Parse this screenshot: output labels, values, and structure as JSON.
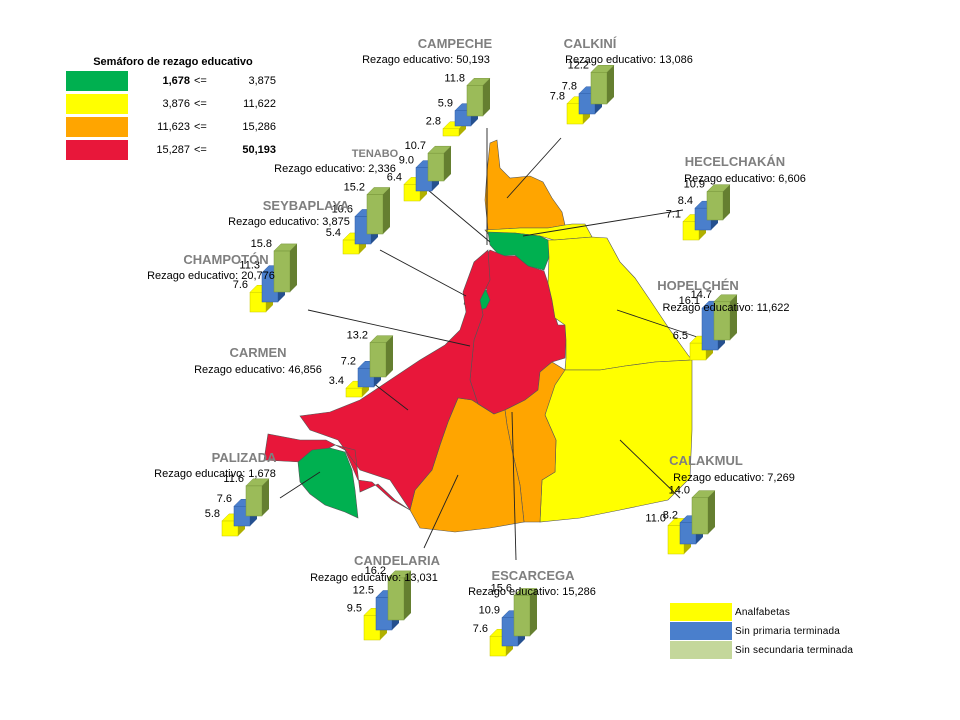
{
  "legend": {
    "title": "Semáforo de rezago educativo",
    "rows": [
      {
        "from": "1,678",
        "op": "<=",
        "to": "3,875",
        "color": "#00b050"
      },
      {
        "from": "3,876",
        "op": "<=",
        "to": "11,622",
        "color": "#ffff00"
      },
      {
        "from": "11,623",
        "op": "<=",
        "to": "15,286",
        "color": "#ffa500"
      },
      {
        "from": "15,287",
        "op": "<=",
        "to": "50,193",
        "color": "#e8173a"
      }
    ]
  },
  "series_legend": [
    {
      "label": "Analfabetas",
      "color": "#ffff00"
    },
    {
      "label": "Sin primaria terminada",
      "color": "#4a7fcc"
    },
    {
      "label": "Sin secundaria terminada",
      "color": "#c4d79b"
    }
  ],
  "map_colors": {
    "red": "#e8173a",
    "orange": "#ffa500",
    "yellow": "#ffff00",
    "green": "#00b050",
    "bar_yellow": "#ffff00",
    "bar_blue": "#4a7fcc",
    "bar_green": "#9bbb59"
  },
  "municipalities": [
    {
      "name": "CAMPECHE",
      "rezago_label": "Rezago educativo:",
      "rezago": "50,193",
      "values": [
        2.8,
        5.9,
        11.8
      ],
      "labels": [
        "2.8",
        "5.9",
        "11.8"
      ],
      "region_color": "red"
    },
    {
      "name": "CALKINÍ",
      "rezago_label": "Rezago educativo:",
      "rezago": "13,086",
      "values": [
        7.8,
        7.8,
        12.2
      ],
      "labels": [
        "7.8",
        "7.8",
        "12.2"
      ],
      "region_color": "orange"
    },
    {
      "name": "TENABO",
      "rezago_label": "Rezago educativo:",
      "rezago": "2,336",
      "values": [
        6.4,
        9.0,
        10.7
      ],
      "labels": [
        "6.4",
        "9.0",
        "10.7"
      ],
      "region_color": "green"
    },
    {
      "name": "HECELCHAKÁN",
      "rezago_label": "Rezago educativo:",
      "rezago": "6,606",
      "values": [
        7.1,
        8.4,
        10.9
      ],
      "labels": [
        "7.1",
        "8.4",
        "10.9"
      ],
      "region_color": "yellow"
    },
    {
      "name": "SEYBAPLAYA",
      "rezago_label": "Rezago educativo:",
      "rezago": "3,875",
      "values": [
        5.4,
        10.6,
        15.2
      ],
      "labels": [
        "5.4",
        "10.6",
        "15.2"
      ],
      "region_color": "green"
    },
    {
      "name": "CHAMPOTÓN",
      "rezago_label": "Rezago educativo:",
      "rezago": "20,776",
      "values": [
        7.6,
        11.3,
        15.8
      ],
      "labels": [
        "7.6",
        "11.3",
        "15.8"
      ],
      "region_color": "red"
    },
    {
      "name": "HOPELCHÉN",
      "rezago_label": "Rezago educativo:",
      "rezago": "11,622",
      "values": [
        6.5,
        16.1,
        14.7
      ],
      "labels": [
        "6.5",
        "16.1",
        "14.7"
      ],
      "region_color": "yellow"
    },
    {
      "name": "CARMEN",
      "rezago_label": "Rezago educativo:",
      "rezago": "46,856",
      "values": [
        3.4,
        7.2,
        13.2
      ],
      "labels": [
        "3.4",
        "7.2",
        "13.2"
      ],
      "region_color": "red"
    },
    {
      "name": "PALIZADA",
      "rezago_label": "Rezago educativo:",
      "rezago": "1,678",
      "values": [
        5.8,
        7.6,
        11.6
      ],
      "labels": [
        "5.8",
        "7.6",
        "11.6"
      ],
      "region_color": "green"
    },
    {
      "name": "CALAKMUL",
      "rezago_label": "Rezago educativo:",
      "rezago": "7,269",
      "values": [
        11.0,
        8.2,
        14.0
      ],
      "labels": [
        "11.0",
        "8.2",
        "14.0"
      ],
      "region_color": "yellow"
    },
    {
      "name": "CANDELARIA",
      "rezago_label": "Rezago educativo:",
      "rezago": "13,031",
      "values": [
        9.5,
        12.5,
        16.2
      ],
      "labels": [
        "9.5",
        "12.5",
        "16.2"
      ],
      "region_color": "orange"
    },
    {
      "name": "ESCARCEGA",
      "rezago_label": "Rezago educativo:",
      "rezago": "15,286",
      "values": [
        7.6,
        10.9,
        15.6
      ],
      "labels": [
        "7.6",
        "10.9",
        "15.6"
      ],
      "region_color": "orange"
    }
  ]
}
